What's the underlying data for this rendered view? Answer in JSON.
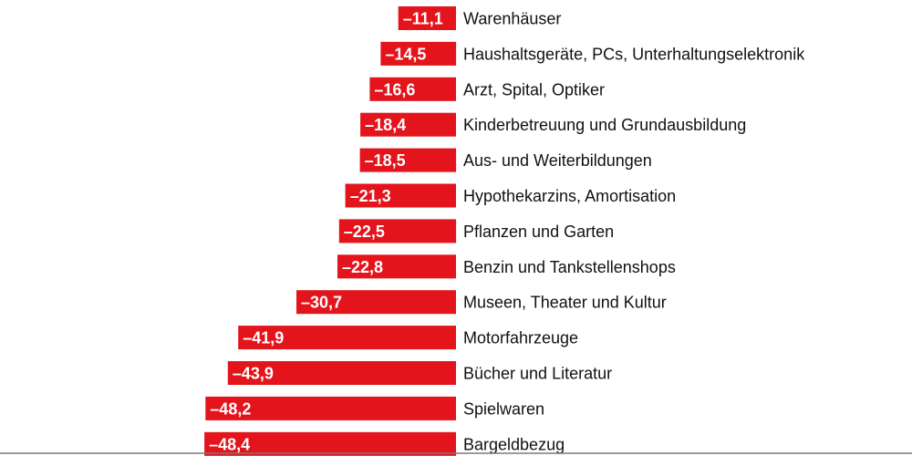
{
  "chart_data": {
    "type": "bar",
    "orientation": "horizontal",
    "title": "",
    "xlabel": "",
    "ylabel": "",
    "xlim": [
      -55,
      0
    ],
    "bar_color": "#e3141c",
    "label_color": "#ffffff",
    "text_color": "#111111",
    "categories": [
      "Warenhäuser",
      "Haushaltsgeräte, PCs, Unterhaltungselektronik",
      "Arzt, Spital, Optiker",
      "Kinderbetreuung und Grundausbildung",
      "Aus- und Weiterbildungen",
      "Hypothekarzins, Amortisation",
      "Pflanzen und Garten",
      "Benzin und Tankstellenshops",
      "Museen, Theater und Kultur",
      "Motorfahrzeuge",
      "Bücher und Literatur",
      "Spielwaren",
      "Bargeldbezug"
    ],
    "values": [
      -11.1,
      -14.5,
      -16.6,
      -18.4,
      -18.5,
      -21.3,
      -22.5,
      -22.8,
      -30.7,
      -41.9,
      -43.9,
      -48.2,
      -48.4
    ],
    "value_labels": [
      "–11,1",
      "–14,5",
      "–16,6",
      "–18,4",
      "–18,5",
      "–21,3",
      "–22,5",
      "–22,8",
      "–30,7",
      "–41,9",
      "–43,9",
      "–48,2",
      "–48,4"
    ]
  }
}
